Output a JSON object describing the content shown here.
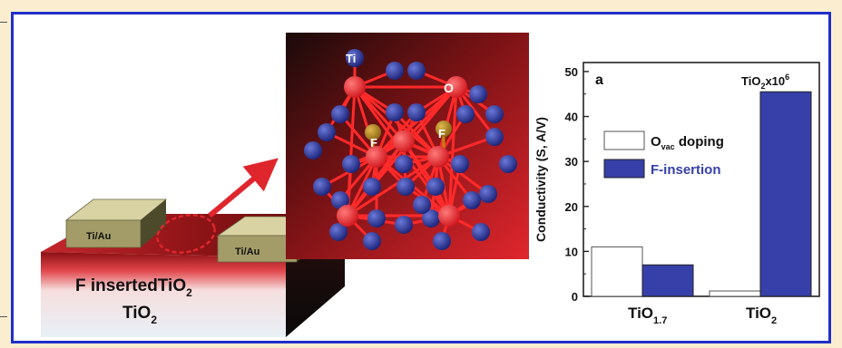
{
  "device": {
    "electrode_left": "Ti/Au",
    "electrode_right": "Ti/Au",
    "layer_top": "F insertedTiO",
    "layer_top_sub": "2",
    "layer_bottom": "TiO",
    "layer_bottom_sub": "2"
  },
  "structure": {
    "ti_label": "Ti",
    "o_label": "O",
    "f_label_1": "F",
    "f_label_2": "F"
  },
  "chart_data": {
    "type": "bar",
    "panel_label": "a",
    "annotation": "TiO",
    "annotation_sub": "2",
    "annotation_suffix": "x10",
    "annotation_sup": "6",
    "ylabel": "Conductivity (S, A/V)",
    "ylim": [
      0,
      52
    ],
    "yticks": [
      0,
      10,
      20,
      30,
      40,
      50
    ],
    "categories": [
      {
        "main": "TiO",
        "sub": "1.7"
      },
      {
        "main": "TiO",
        "sub": "2"
      }
    ],
    "series": [
      {
        "name": "O",
        "name_sub": "vac",
        "name_suffix": " doping",
        "color": "#ffffff",
        "values": [
          11,
          1.2
        ]
      },
      {
        "name": "F-insertion",
        "color": "#3640a8",
        "values": [
          7,
          45.5
        ]
      }
    ]
  }
}
